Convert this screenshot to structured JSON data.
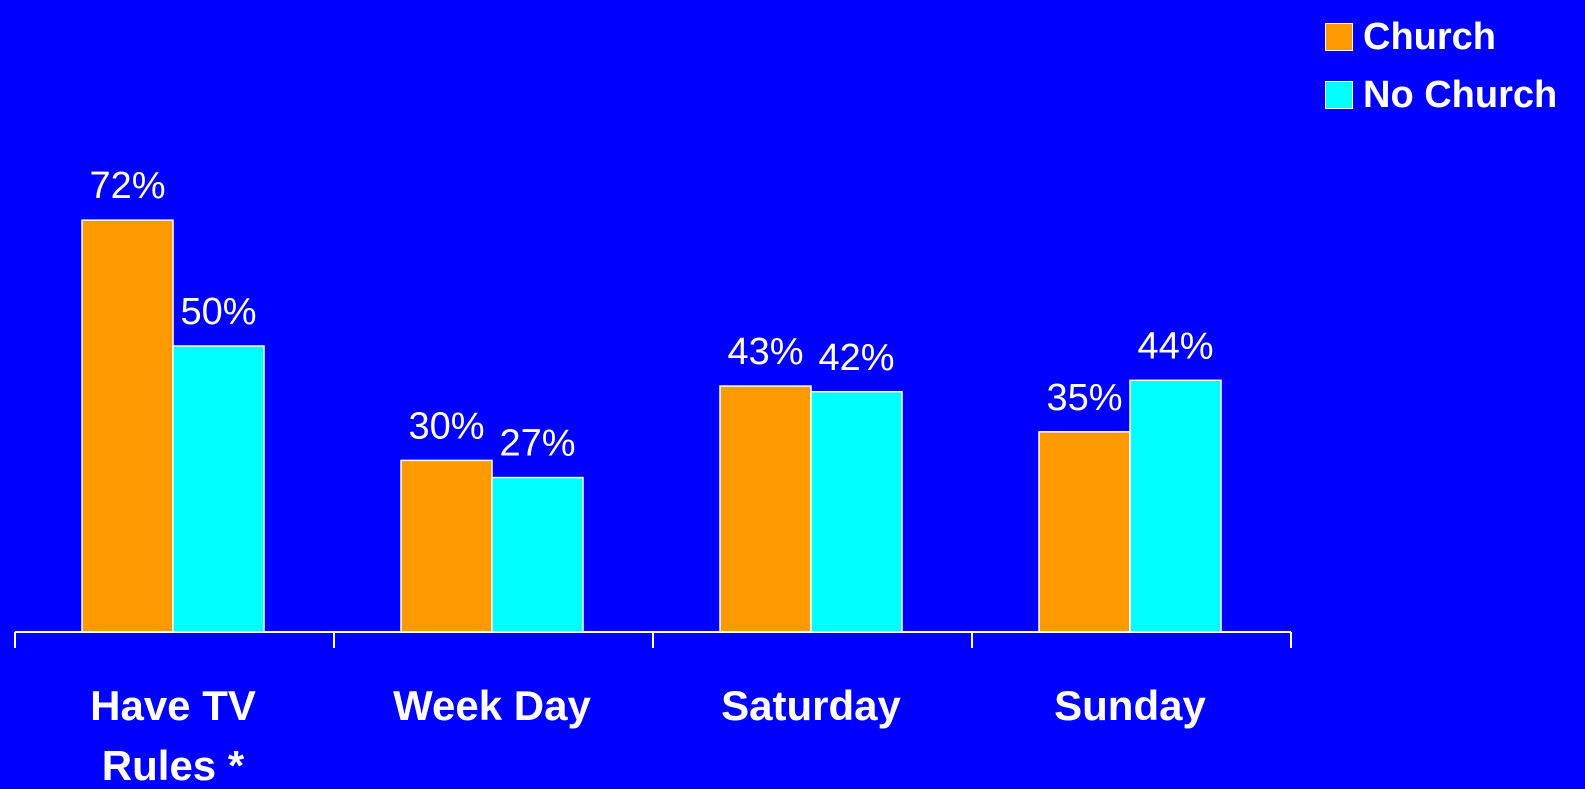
{
  "chart_data": {
    "type": "bar",
    "categories": [
      "Have TV\nRules *",
      "Week Day",
      "Saturday",
      "Sunday"
    ],
    "series": [
      {
        "name": "Church",
        "values": [
          72,
          30,
          43,
          35
        ],
        "labels": [
          "72%",
          "30%",
          "43%",
          "35%"
        ],
        "color": "#ff9900"
      },
      {
        "name": "No Church",
        "values": [
          50,
          27,
          42,
          44
        ],
        "labels": [
          "50%",
          "27%",
          "42%",
          "44%"
        ],
        "color": "#00ffff"
      }
    ],
    "ylim": [
      0,
      100
    ],
    "grid": false,
    "legend_position": "top-right",
    "background": "#0000ff"
  }
}
